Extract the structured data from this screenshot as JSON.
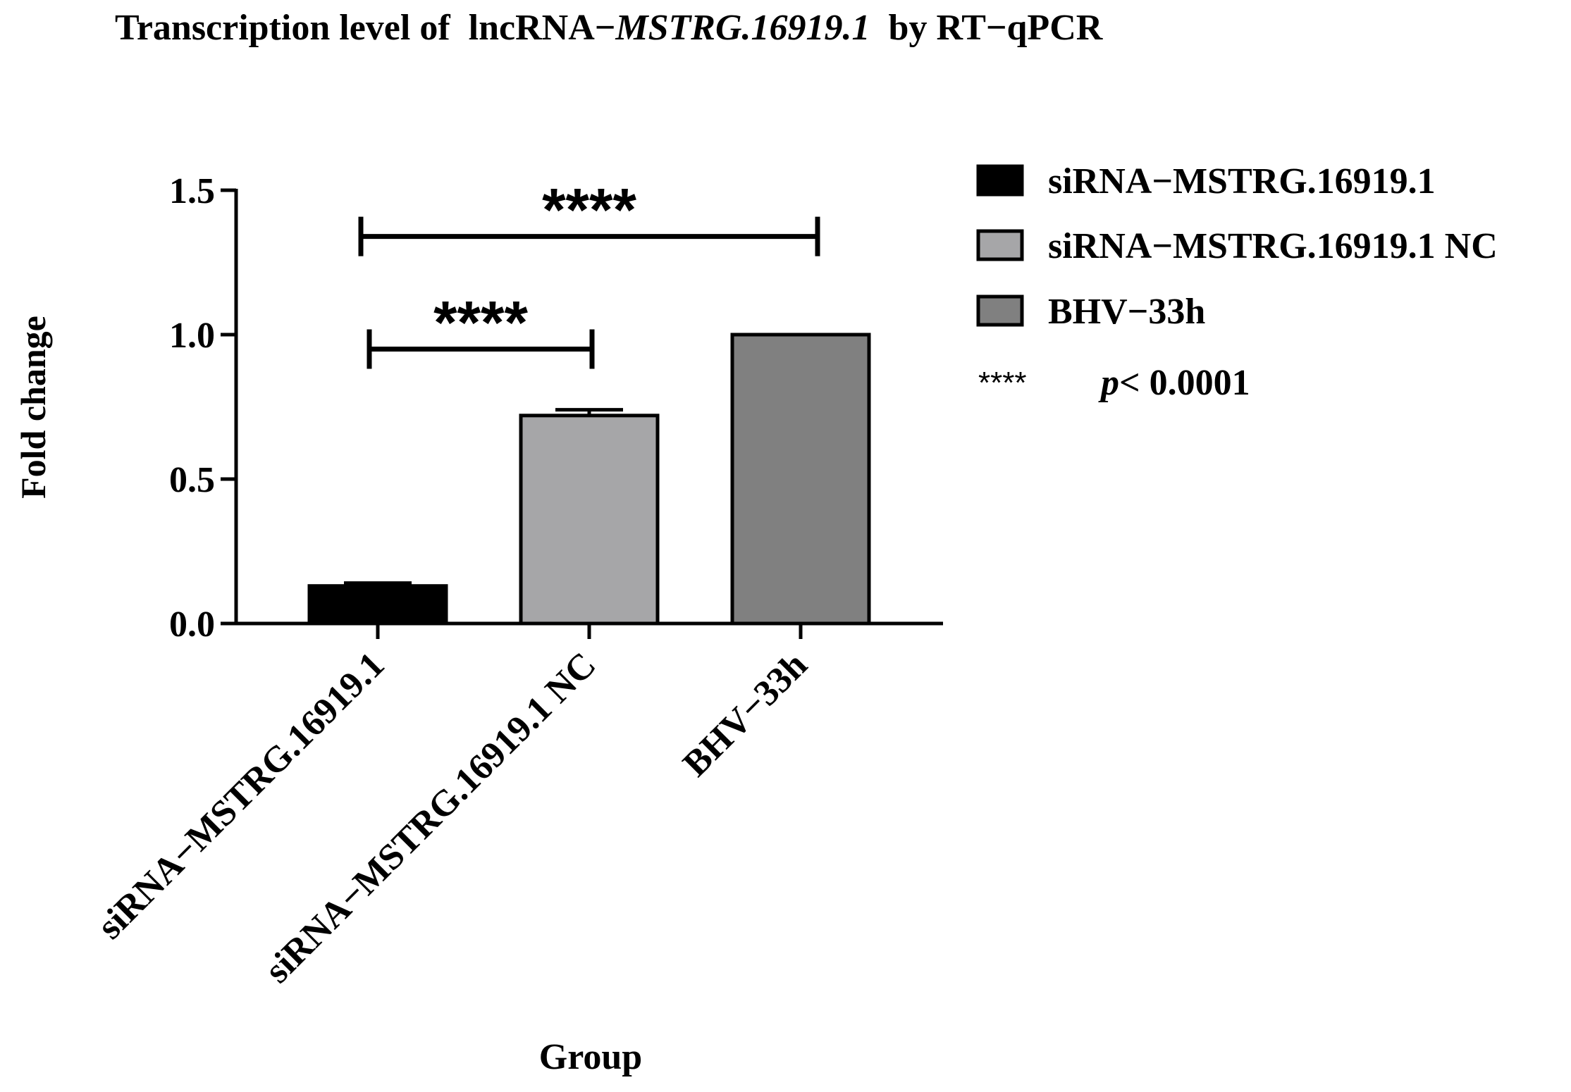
{
  "chart_data": {
    "type": "bar",
    "title": {
      "prefix": "Transcription level of  lncRNA−",
      "italic": "MSTRG.16919.1",
      "suffix": "  by RT−qPCR"
    },
    "xlabel": "Group",
    "ylabel": "Fold change",
    "ylim": [
      0,
      1.5
    ],
    "yticks": [
      0.0,
      0.5,
      1.0,
      1.5
    ],
    "ytick_labels": [
      "0.0",
      "0.5",
      "1.0",
      "1.5"
    ],
    "categories": [
      "siRNA−MSTRG.16919.1",
      "siRNA−MSTRG.16919.1 NC",
      "BHV−33h"
    ],
    "values": [
      0.13,
      0.72,
      1.0
    ],
    "errors": [
      0.01,
      0.02,
      0.0
    ],
    "colors": [
      "#000000",
      "#a6a6a8",
      "#808080"
    ],
    "grid": false,
    "legend": {
      "position": "right",
      "entries": [
        {
          "label": "siRNA−MSTRG.16919.1",
          "color": "#000000"
        },
        {
          "label": "siRNA−MSTRG.16919.1 NC",
          "color": "#a6a6a8"
        },
        {
          "label": "BHV−33h",
          "color": "#808080"
        }
      ],
      "note_stars": "****",
      "note_p": "p",
      "note_value": "< 0.0001"
    },
    "significance": [
      {
        "from": 0,
        "to": 2,
        "level": 1.34,
        "label": "****"
      },
      {
        "from": 0,
        "to": 1,
        "level": 0.95,
        "label": "****"
      }
    ]
  }
}
